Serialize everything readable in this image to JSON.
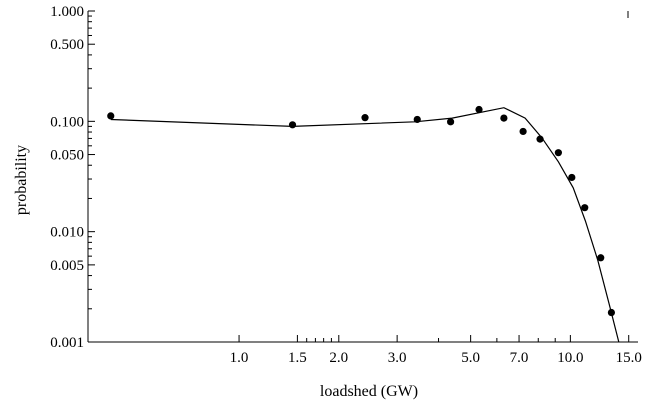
{
  "chart_data": {
    "type": "scatter",
    "title": "",
    "xlabel": "loadshed (GW)",
    "ylabel": "probability",
    "x_scale": "log",
    "y_scale": "log",
    "xlim": [
      0.35,
      16.0
    ],
    "ylim": [
      0.001,
      1.0
    ],
    "grid": false,
    "legend": "none",
    "x_ticks": [
      {
        "value": 1.0,
        "label": "1.0"
      },
      {
        "value": 1.5,
        "label": "1.5"
      },
      {
        "value": 2.0,
        "label": "2.0"
      },
      {
        "value": 3.0,
        "label": "3.0"
      },
      {
        "value": 5.0,
        "label": "5.0"
      },
      {
        "value": 7.0,
        "label": "7.0"
      },
      {
        "value": 10.0,
        "label": "10.0"
      },
      {
        "value": 15.0,
        "label": "15.0"
      }
    ],
    "x_minor_ticks": [
      1.6,
      1.7,
      1.8,
      1.9,
      4.0,
      6.0,
      8.0,
      9.0
    ],
    "y_ticks": [
      {
        "value": 0.001,
        "label": "0.001"
      },
      {
        "value": 0.005,
        "label": "0.005"
      },
      {
        "value": 0.01,
        "label": "0.010"
      },
      {
        "value": 0.05,
        "label": "0.050"
      },
      {
        "value": 0.1,
        "label": "0.100"
      },
      {
        "value": 0.5,
        "label": "0.500"
      },
      {
        "value": 1.0,
        "label": "1.000"
      }
    ],
    "series": [
      {
        "kind": "points",
        "color": "#000000",
        "points": [
          {
            "x": 0.41,
            "y": 0.112
          },
          {
            "x": 1.45,
            "y": 0.093
          },
          {
            "x": 2.4,
            "y": 0.108
          },
          {
            "x": 3.45,
            "y": 0.104
          },
          {
            "x": 4.35,
            "y": 0.099
          },
          {
            "x": 5.3,
            "y": 0.128
          },
          {
            "x": 6.3,
            "y": 0.107
          },
          {
            "x": 7.2,
            "y": 0.081
          },
          {
            "x": 8.1,
            "y": 0.069
          },
          {
            "x": 9.2,
            "y": 0.052
          },
          {
            "x": 10.1,
            "y": 0.031
          },
          {
            "x": 11.05,
            "y": 0.0165
          },
          {
            "x": 12.35,
            "y": 0.0058
          },
          {
            "x": 13.3,
            "y": 0.00185
          }
        ]
      },
      {
        "kind": "line",
        "color": "#000000",
        "points": [
          {
            "x": 0.41,
            "y": 0.104
          },
          {
            "x": 1.45,
            "y": 0.09
          },
          {
            "x": 3.4,
            "y": 0.099
          },
          {
            "x": 4.4,
            "y": 0.107
          },
          {
            "x": 6.3,
            "y": 0.133
          },
          {
            "x": 7.3,
            "y": 0.107
          },
          {
            "x": 8.2,
            "y": 0.071
          },
          {
            "x": 9.2,
            "y": 0.043
          },
          {
            "x": 10.2,
            "y": 0.025
          },
          {
            "x": 11.1,
            "y": 0.0125
          },
          {
            "x": 12.1,
            "y": 0.0055
          },
          {
            "x": 13.1,
            "y": 0.0022
          },
          {
            "x": 14.0,
            "y": 0.001
          }
        ]
      }
    ]
  }
}
